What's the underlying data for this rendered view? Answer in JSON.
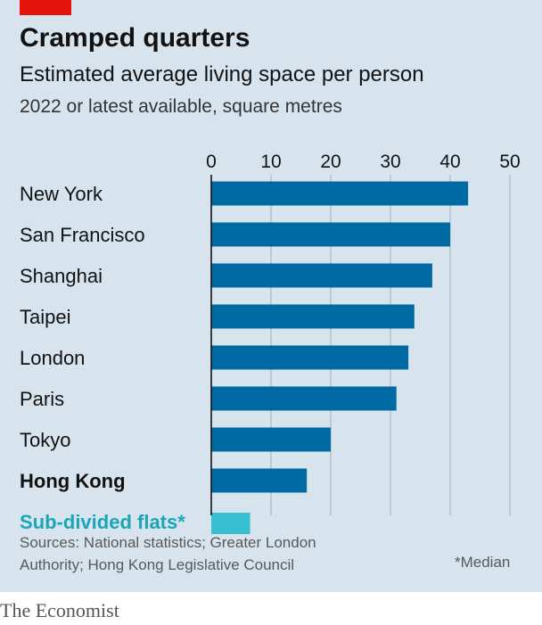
{
  "title": "Cramped quarters",
  "subtitle": "Estimated average living space per person",
  "unit_note": "2022 or latest available, square metres",
  "sources": {
    "line1": "Sources: National statistics; Greater London",
    "line2": "Authority; Hong Kong Legislative Council"
  },
  "footnote": "*Median",
  "brand": "The Economist",
  "colors": {
    "bar": "#006ba2",
    "highlight": "#36c0d2",
    "grid": "#a8b8c6",
    "axis": "#121212",
    "tag": "#e3120b"
  },
  "chart_data": {
    "type": "bar",
    "orientation": "horizontal",
    "categories": [
      "New York",
      "San Francisco",
      "Shanghai",
      "Taipei",
      "London",
      "Paris",
      "Tokyo",
      "Hong Kong",
      "Sub-divided flats*"
    ],
    "values": [
      43,
      40,
      37,
      34,
      33,
      31,
      20,
      16,
      6.5
    ],
    "bold_categories": [
      "Hong Kong"
    ],
    "highlight_categories": [
      "Sub-divided flats*"
    ],
    "xlim": [
      0,
      50
    ],
    "xticks": [
      0,
      10,
      20,
      30,
      40,
      50
    ],
    "xaxis_position": "top",
    "grid": true
  }
}
